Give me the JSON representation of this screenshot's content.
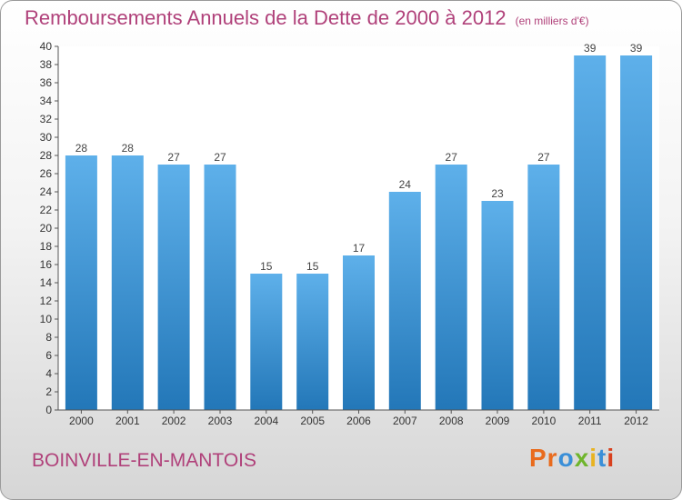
{
  "header": {
    "title": "Remboursements Annuels de la Dette de 2000 à 2012",
    "subtitle": "(en milliers d'€)"
  },
  "footer": {
    "commune": "BOINVILLE-EN-MANTOIS",
    "logo": [
      "Pr",
      "o",
      "x",
      "i",
      "t",
      "i"
    ]
  },
  "colors": {
    "title": "#b0417a",
    "bar_top": "#5eb0ea",
    "bar_bottom": "#2377b8"
  },
  "chart_data": {
    "type": "bar",
    "title": "Remboursements Annuels de la Dette de 2000 à 2012",
    "subtitle": "(en milliers d'€)",
    "categories": [
      "2000",
      "2001",
      "2002",
      "2003",
      "2004",
      "2005",
      "2006",
      "2007",
      "2008",
      "2009",
      "2010",
      "2011",
      "2012"
    ],
    "values": [
      28,
      28,
      27,
      27,
      15,
      15,
      17,
      24,
      27,
      23,
      27,
      39,
      39
    ],
    "ylim": [
      0,
      40
    ],
    "yticks": [
      0,
      2,
      4,
      6,
      8,
      10,
      12,
      14,
      16,
      18,
      20,
      22,
      24,
      26,
      28,
      30,
      32,
      34,
      36,
      38,
      40
    ],
    "grid": false,
    "xlabel": "",
    "ylabel": ""
  }
}
